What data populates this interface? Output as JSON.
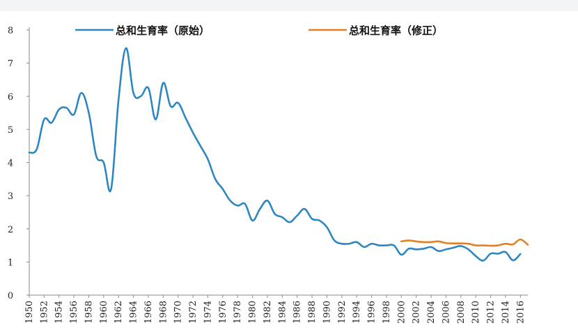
{
  "chart_data": {
    "type": "line",
    "title": "",
    "xlabel": "",
    "ylabel": "",
    "xlim": [
      1950,
      2017
    ],
    "ylim": [
      0,
      8
    ],
    "grid": false,
    "legend_position": "top",
    "y_ticks": [
      "0",
      "1",
      "2",
      "3",
      "4",
      "5",
      "6",
      "7",
      "8"
    ],
    "x_ticks": [
      "1950",
      "1952",
      "1954",
      "1956",
      "1958",
      "1960",
      "1962",
      "1964",
      "1966",
      "1968",
      "1970",
      "1972",
      "1974",
      "1976",
      "1978",
      "1980",
      "1982",
      "1984",
      "1986",
      "1988",
      "1990",
      "1992",
      "1994",
      "1996",
      "1998",
      "2000",
      "2002",
      "2004",
      "2006",
      "2008",
      "2010",
      "2012",
      "2014",
      "2016"
    ],
    "series": [
      {
        "name": "总和生育率（原始）",
        "color": "#2e86c1",
        "x": [
          1950,
          1951,
          1952,
          1953,
          1954,
          1955,
          1956,
          1957,
          1958,
          1959,
          1960,
          1961,
          1962,
          1963,
          1964,
          1965,
          1966,
          1967,
          1968,
          1969,
          1970,
          1971,
          1972,
          1973,
          1974,
          1975,
          1976,
          1977,
          1978,
          1979,
          1980,
          1981,
          1982,
          1983,
          1984,
          1985,
          1986,
          1987,
          1988,
          1989,
          1990,
          1991,
          1992,
          1993,
          1994,
          1995,
          1996,
          1997,
          1998,
          1999,
          2000,
          2001,
          2002,
          2003,
          2004,
          2005,
          2006,
          2007,
          2008,
          2009,
          2010,
          2011,
          2012,
          2013,
          2014,
          2015,
          2016
        ],
        "values": [
          4.3,
          4.4,
          5.3,
          5.2,
          5.6,
          5.65,
          5.45,
          6.1,
          5.5,
          4.2,
          4.0,
          3.2,
          5.9,
          7.45,
          6.1,
          6.0,
          6.25,
          5.3,
          6.4,
          5.7,
          5.8,
          5.35,
          4.9,
          4.5,
          4.1,
          3.5,
          3.2,
          2.85,
          2.7,
          2.75,
          2.25,
          2.6,
          2.85,
          2.45,
          2.35,
          2.2,
          2.4,
          2.6,
          2.3,
          2.25,
          2.05,
          1.65,
          1.55,
          1.55,
          1.6,
          1.45,
          1.55,
          1.5,
          1.5,
          1.5,
          1.22,
          1.4,
          1.38,
          1.4,
          1.45,
          1.33,
          1.38,
          1.43,
          1.48,
          1.38,
          1.18,
          1.04,
          1.25,
          1.25,
          1.3,
          1.05,
          1.24
        ]
      },
      {
        "name": "总和生育率（修正）",
        "color": "#e67e22",
        "x": [
          2000,
          2001,
          2002,
          2003,
          2004,
          2005,
          2006,
          2007,
          2008,
          2009,
          2010,
          2011,
          2012,
          2013,
          2014,
          2015,
          2016,
          2017
        ],
        "values": [
          1.62,
          1.65,
          1.62,
          1.6,
          1.6,
          1.62,
          1.57,
          1.56,
          1.56,
          1.55,
          1.5,
          1.5,
          1.49,
          1.5,
          1.55,
          1.53,
          1.68,
          1.52
        ]
      }
    ]
  }
}
